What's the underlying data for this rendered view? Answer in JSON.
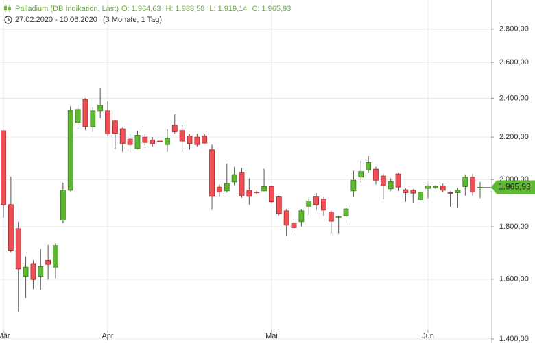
{
  "chart_data": {
    "type": "candlestick",
    "title": "Palladium (DB Indikation, Last)",
    "quote_labels": [
      "O: 1.964,63",
      "H: 1.988,58",
      "L: 1.919,14",
      "C: 1.965,93"
    ],
    "date_range": "27.02.2020 - 10.06.2020",
    "period": "(3 Monate, 1 Tag)",
    "last_label": "1.965,93",
    "up_color": "#5fb832",
    "down_color": "#ef4f55",
    "log_scale": true,
    "grid": true,
    "ylim": [
      1387,
      2990
    ],
    "yticks": [
      {
        "value": 1400,
        "label": "1.400,00"
      },
      {
        "value": 1600,
        "label": "1.600,00"
      },
      {
        "value": 1800,
        "label": "1.800,00"
      },
      {
        "value": 2000,
        "label": "2.000,00"
      },
      {
        "value": 2200,
        "label": "2.200,00"
      },
      {
        "value": 2400,
        "label": "2.400,00"
      },
      {
        "value": 2600,
        "label": "2.600,00"
      },
      {
        "value": 2800,
        "label": "2.800,00"
      }
    ],
    "categories": [
      "Mär",
      null,
      null,
      null,
      null,
      null,
      null,
      null,
      null,
      null,
      null,
      null,
      null,
      null,
      "Apr",
      null,
      null,
      null,
      null,
      null,
      null,
      null,
      null,
      null,
      null,
      null,
      null,
      null,
      null,
      null,
      null,
      null,
      null,
      null,
      null,
      null,
      "Mai",
      null,
      null,
      null,
      null,
      null,
      null,
      null,
      null,
      null,
      null,
      null,
      null,
      null,
      null,
      null,
      null,
      null,
      null,
      null,
      null,
      "Jun",
      null,
      null,
      null,
      null,
      null,
      null,
      null
    ],
    "open": [
      2231,
      1891,
      1792,
      1610,
      1657,
      1610,
      1669,
      1644,
      1826,
      1953,
      2273,
      2394,
      2252,
      2333,
      2333,
      2280,
      2241,
      2190,
      2144,
      2200,
      2186,
      2180,
      2163,
      2259,
      2232,
      2206,
      2200,
      2206,
      2138,
      1967,
      1950,
      1989,
      2033,
      1953,
      1945,
      1950,
      1969,
      1924,
      1865,
      1815,
      1820,
      1884,
      1924,
      1915,
      1860,
      1839,
      1844,
      1950,
      2011,
      2044,
      2047,
      2016,
      1959,
      2025,
      1955,
      1953,
      1913,
      1961,
      1964,
      1972,
      1942,
      1942,
      1969,
      2011,
      1964.63
    ],
    "high": [
      2231,
      2013,
      1820,
      1683,
      1669,
      1712,
      1727,
      1735,
      1986,
      2357,
      2364,
      2401,
      2351,
      2458,
      2384,
      2283,
      2248,
      2216,
      2231,
      2213,
      2200,
      2180,
      2238,
      2315,
      2259,
      2213,
      2216,
      2213,
      2163,
      1978,
      2073,
      2058,
      2052,
      2005,
      1950,
      2049,
      1972,
      1929,
      1871,
      1820,
      1871,
      1915,
      1940,
      1921,
      1865,
      1844,
      1889,
      2040,
      2085,
      2108,
      2058,
      2027,
      2005,
      2030,
      1961,
      1958,
      1945,
      1978,
      1975,
      1981,
      1948,
      1964,
      2022,
      2025,
      1988.58
    ],
    "low": [
      1837,
      1699,
      1488,
      1534,
      1565,
      1562,
      1598,
      1603,
      1814,
      1948,
      2238,
      2235,
      2226,
      2294,
      2206,
      2141,
      2128,
      2128,
      2141,
      2157,
      2154,
      2173,
      2128,
      2216,
      2128,
      2138,
      2154,
      2167,
      1869,
      1924,
      1942,
      1975,
      1921,
      1891,
      1937,
      1948,
      1897,
      1846,
      1763,
      1768,
      1801,
      1846,
      1868,
      1844,
      1771,
      1771,
      1815,
      1924,
      1986,
      2030,
      1978,
      1913,
      1950,
      1950,
      1903,
      1900,
      1910,
      1918,
      1959,
      1945,
      1882,
      1877,
      1929,
      1929,
      1919.14
    ],
    "close": [
      1891,
      1707,
      1637,
      1644,
      1599,
      1646,
      1654,
      1725,
      1953,
      2336,
      2340,
      2252,
      2333,
      2362,
      2216,
      2219,
      2167,
      2163,
      2209,
      2173,
      2167,
      2177,
      2193,
      2226,
      2180,
      2167,
      2163,
      2170,
      1926,
      1945,
      1983,
      2022,
      1929,
      1926,
      1942,
      1969,
      1903,
      1854,
      1806,
      1796,
      1865,
      1906,
      1891,
      1868,
      1822,
      1841,
      1873,
      1997,
      2036,
      2078,
      1997,
      1975,
      1991,
      1967,
      1942,
      1940,
      1945,
      1972,
      1969,
      1953,
      1940,
      1953,
      2011,
      1945,
      1965.93
    ]
  }
}
